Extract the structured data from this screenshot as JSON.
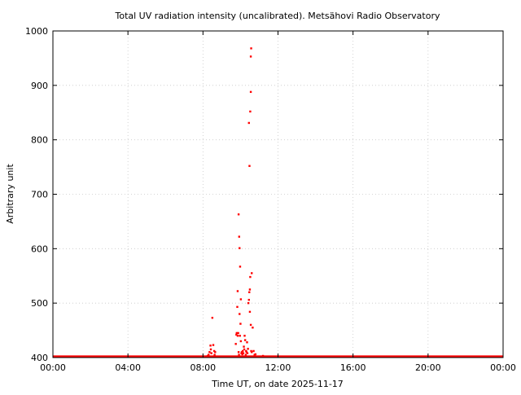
{
  "chart_data": {
    "type": "scatter",
    "title": "Total UV radiation intensity (uncalibrated). Metsähovi Radio Observatory",
    "xlabel": "Time UT, on date 2025-11-17",
    "ylabel": "Arbitrary unit",
    "xlim": [
      0,
      24
    ],
    "ylim": [
      400,
      1000
    ],
    "x_unit": "hours UT",
    "x_ticks": [
      0,
      4,
      8,
      12,
      16,
      20,
      24
    ],
    "x_tick_labels": [
      "00:00",
      "04:00",
      "08:00",
      "12:00",
      "16:00",
      "20:00",
      "00:00"
    ],
    "y_ticks": [
      400,
      500,
      600,
      700,
      800,
      900,
      1000
    ],
    "y_tick_labels": [
      "400",
      "500",
      "600",
      "700",
      "800",
      "900",
      "1000"
    ],
    "grid": true,
    "marker_color": "#ff0000",
    "baseline": {
      "value": 402,
      "x_from": 0,
      "x_to": 24
    },
    "series": [
      {
        "x": [
          8.25,
          8.3,
          8.35,
          8.4,
          8.42,
          8.45,
          8.5,
          8.55,
          8.6,
          8.62,
          8.65,
          9.75,
          9.78,
          9.8,
          9.83,
          9.85,
          9.88,
          9.9,
          9.92,
          9.95,
          9.97,
          10.0,
          10.02,
          10.05,
          10.07,
          10.1,
          10.12,
          10.15,
          10.18,
          10.2,
          10.22,
          10.25,
          10.28,
          10.3,
          10.32,
          10.35,
          10.37,
          10.4,
          10.42,
          10.45,
          10.47,
          10.5,
          10.52,
          10.55,
          10.57,
          10.6,
          10.65,
          10.7,
          10.75,
          10.8,
          11.0,
          11.2
        ],
        "y": [
          403,
          405,
          410,
          422,
          415,
          408,
          473,
          423,
          412,
          405,
          410,
          425,
          442,
          445,
          493,
          440,
          445,
          410,
          405,
          480,
          440,
          462,
          430,
          408,
          410,
          406,
          412,
          408,
          420,
          415,
          440,
          432,
          405,
          412,
          410,
          428,
          408,
          416,
          500,
          506,
          520,
          525,
          548,
          460,
          412,
          410,
          455,
          412,
          405,
          406,
          402,
          403
        ]
      },
      {
        "x": [
          9.85,
          9.9,
          9.93,
          9.95,
          9.98,
          10.02,
          10.45,
          10.48,
          10.5,
          10.52,
          10.55,
          10.57
        ],
        "y": [
          522,
          663,
          622,
          601,
          567,
          507,
          831,
          752,
          484,
          852,
          953,
          968
        ]
      },
      {
        "x": [
          10.55,
          10.6
        ],
        "y": [
          888,
          555
        ]
      }
    ]
  }
}
